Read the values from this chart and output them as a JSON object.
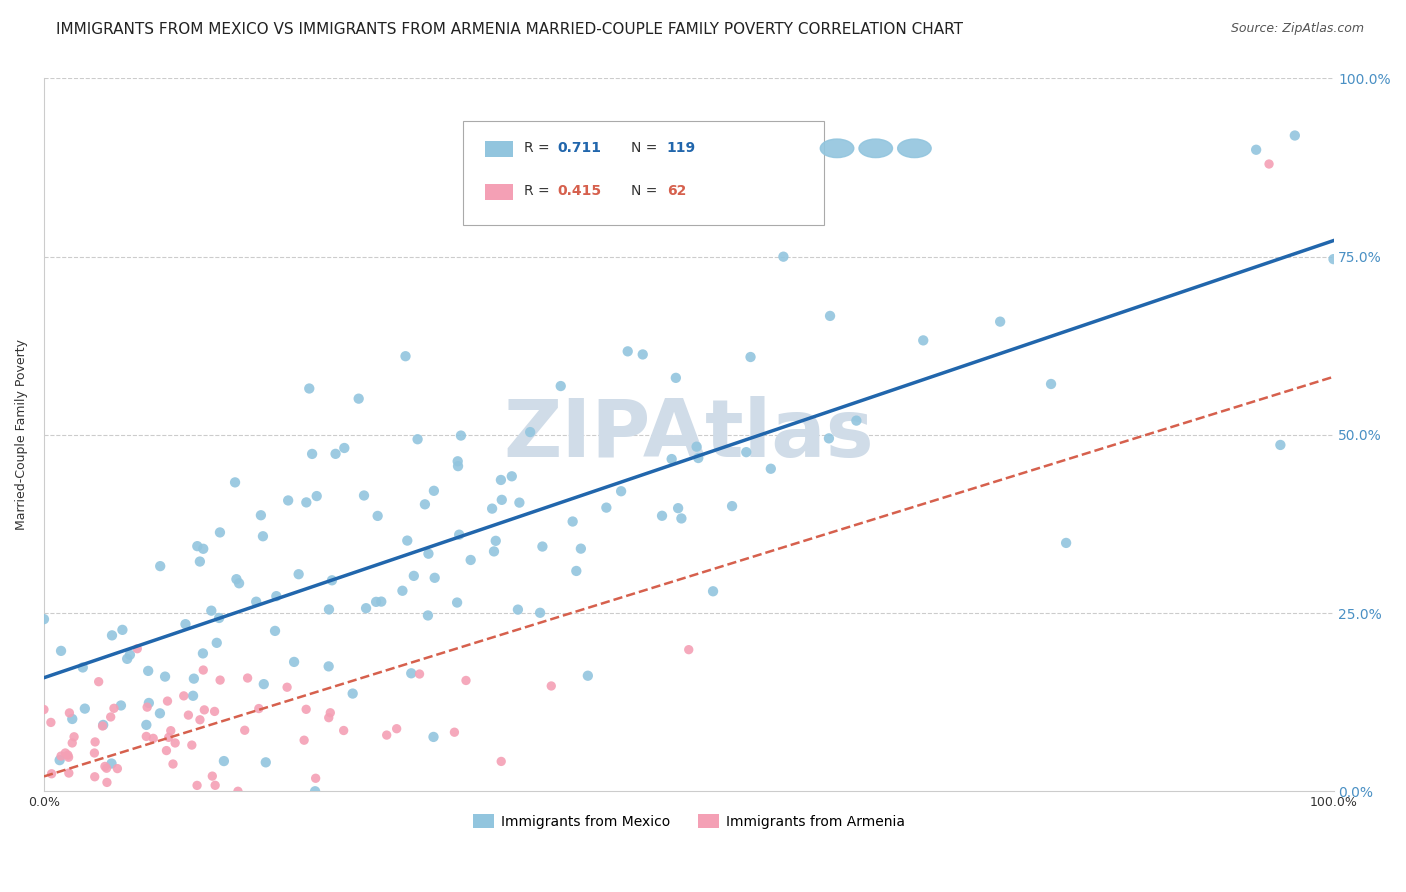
{
  "title": "IMMIGRANTS FROM MEXICO VS IMMIGRANTS FROM ARMENIA MARRIED-COUPLE FAMILY POVERTY CORRELATION CHART",
  "source": "Source: ZipAtlas.com",
  "ylabel": "Married-Couple Family Poverty",
  "mexico_R": 0.711,
  "mexico_N": 119,
  "armenia_R": 0.415,
  "armenia_N": 62,
  "mexico_color": "#92c5de",
  "armenia_color": "#f4a0b5",
  "mexico_line_color": "#2166ac",
  "armenia_line_color": "#d6604d",
  "right_axis_color": "#4a90c4",
  "background_color": "#ffffff",
  "grid_color": "#cccccc",
  "watermark_color": "#d0dce8",
  "xlim": [
    0,
    1
  ],
  "ylim": [
    0,
    1
  ],
  "legend_labels": [
    "Immigrants from Mexico",
    "Immigrants from Armenia"
  ],
  "title_fontsize": 11,
  "axis_fontsize": 9,
  "seed": 42
}
